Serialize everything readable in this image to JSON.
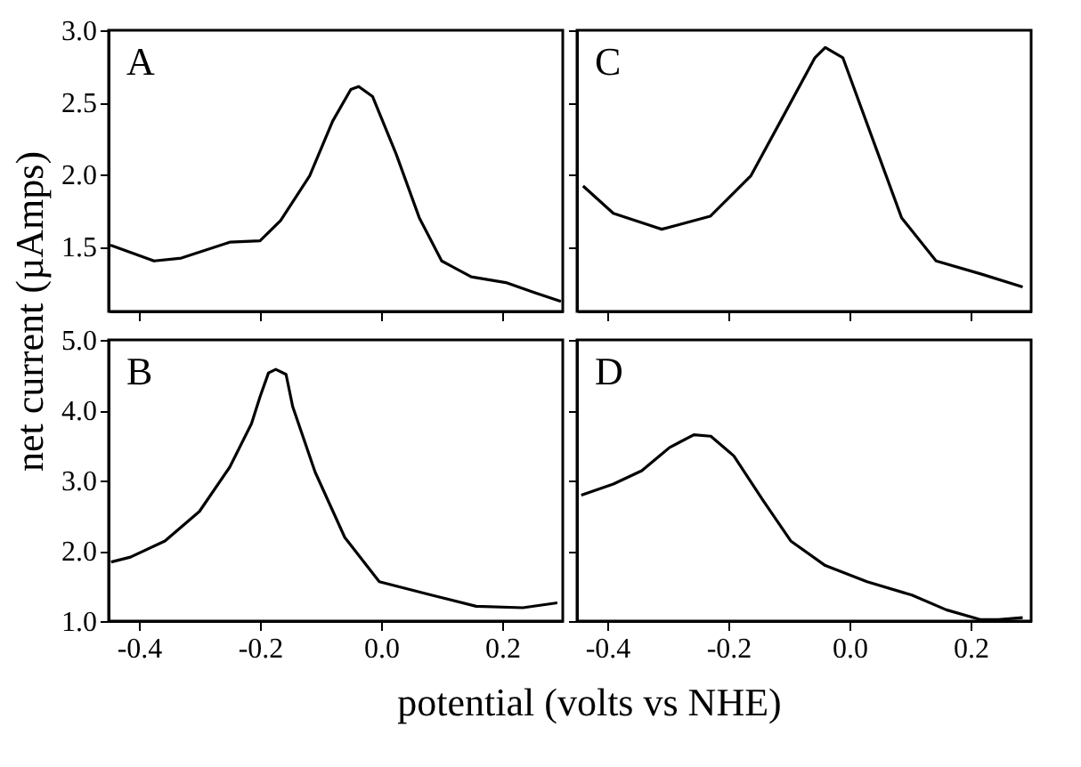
{
  "chart_data": [
    {
      "type": "line",
      "ylabel": "net current (µAmps)",
      "annotations": [
        "A"
      ],
      "tick_labels": "y",
      "grid": false,
      "xlim": [
        -0.45,
        0.3
      ],
      "ylim": [
        1.05,
        3.0
      ],
      "xticks": [
        {
          "value": -0.4,
          "label": null
        },
        {
          "value": -0.2,
          "label": null
        },
        {
          "value": 0.0,
          "label": null
        },
        {
          "value": 0.2,
          "label": null
        }
      ],
      "yticks": [
        {
          "value": 1.5,
          "label": "1.5"
        },
        {
          "value": 2.0,
          "label": "2.0"
        },
        {
          "value": 2.5,
          "label": "2.5"
        },
        {
          "value": 3.0,
          "label": "3.0"
        }
      ],
      "x": [
        -0.447,
        -0.375,
        -0.33,
        -0.25,
        -0.2,
        -0.166,
        -0.118,
        -0.08,
        -0.05,
        -0.037,
        -0.014,
        0.025,
        0.063,
        0.1,
        0.149,
        0.206,
        0.254,
        0.297
      ],
      "series": [
        {
          "color": "#000000",
          "values": [
            1.51,
            1.4,
            1.42,
            1.53,
            1.54,
            1.68,
            1.99,
            2.37,
            2.59,
            2.61,
            2.54,
            2.14,
            1.7,
            1.4,
            1.29,
            1.25,
            1.18,
            1.12
          ]
        }
      ]
    },
    {
      "type": "line",
      "annotations": [
        "C"
      ],
      "tick_labels": false,
      "grid": false,
      "xlim": [
        -0.45,
        0.3
      ],
      "ylim": [
        1.05,
        3.0
      ],
      "xticks": [
        {
          "value": -0.4,
          "label": null
        },
        {
          "value": -0.2,
          "label": null
        },
        {
          "value": 0.0,
          "label": null
        },
        {
          "value": 0.2,
          "label": null
        }
      ],
      "yticks": [
        {
          "value": 1.5,
          "label": null
        },
        {
          "value": 2.0,
          "label": null
        },
        {
          "value": 2.5,
          "label": null
        },
        {
          "value": 3.0,
          "label": null
        }
      ],
      "x": [
        -0.44,
        -0.39,
        -0.31,
        -0.23,
        -0.163,
        -0.106,
        -0.057,
        -0.04,
        -0.011,
        0.037,
        0.086,
        0.143,
        0.217,
        0.286
      ],
      "series": [
        {
          "color": "#000000",
          "values": [
            1.92,
            1.73,
            1.62,
            1.71,
            1.99,
            2.43,
            2.81,
            2.88,
            2.81,
            2.26,
            1.7,
            1.4,
            1.31,
            1.22
          ]
        }
      ]
    },
    {
      "type": "line",
      "xlabel": "potential (volts vs NHE)",
      "annotations": [
        "B"
      ],
      "grid": false,
      "xlim": [
        -0.45,
        0.3
      ],
      "ylim": [
        1.0,
        5.0
      ],
      "xticks": [
        {
          "value": -0.4,
          "label": "-0.4"
        },
        {
          "value": -0.2,
          "label": "-0.2"
        },
        {
          "value": 0.0,
          "label": "0.0"
        },
        {
          "value": 0.2,
          "label": "0.2"
        }
      ],
      "yticks": [
        {
          "value": 1.0,
          "label": "1.0"
        },
        {
          "value": 2.0,
          "label": "2.0"
        },
        {
          "value": 3.0,
          "label": "3.0"
        },
        {
          "value": 4.0,
          "label": "4.0"
        },
        {
          "value": 5.0,
          "label": "5.0"
        }
      ],
      "x": [
        -0.446,
        -0.414,
        -0.357,
        -0.3,
        -0.25,
        -0.214,
        -0.2,
        -0.186,
        -0.174,
        -0.157,
        -0.146,
        -0.109,
        -0.06,
        -0.003,
        0.083,
        0.157,
        0.234,
        0.291
      ],
      "series": [
        {
          "color": "#000000",
          "values": [
            1.84,
            1.91,
            2.14,
            2.56,
            3.19,
            3.81,
            4.19,
            4.53,
            4.58,
            4.51,
            4.05,
            3.12,
            2.19,
            1.56,
            1.37,
            1.21,
            1.19,
            1.26
          ]
        }
      ]
    },
    {
      "type": "line",
      "annotations": [
        "D"
      ],
      "tick_labels": "x",
      "grid": false,
      "xlim": [
        -0.45,
        0.3
      ],
      "ylim": [
        1.0,
        5.0
      ],
      "xticks": [
        {
          "value": -0.4,
          "label": "-0.4"
        },
        {
          "value": -0.2,
          "label": "-0.2"
        },
        {
          "value": 0.0,
          "label": "0.0"
        },
        {
          "value": 0.2,
          "label": "0.2"
        }
      ],
      "yticks": [
        {
          "value": 1.0,
          "label": null
        },
        {
          "value": 2.0,
          "label": null
        },
        {
          "value": 3.0,
          "label": null
        },
        {
          "value": 4.0,
          "label": null
        },
        {
          "value": 5.0,
          "label": null
        }
      ],
      "x": [
        -0.443,
        -0.39,
        -0.343,
        -0.297,
        -0.257,
        -0.229,
        -0.191,
        -0.143,
        -0.097,
        -0.04,
        0.029,
        0.103,
        0.16,
        0.217,
        0.246,
        0.286
      ],
      "series": [
        {
          "color": "#000000",
          "values": [
            2.79,
            2.95,
            3.14,
            3.47,
            3.65,
            3.63,
            3.35,
            2.72,
            2.14,
            1.79,
            1.56,
            1.37,
            1.16,
            1.02,
            1.02,
            1.05
          ]
        }
      ]
    }
  ]
}
